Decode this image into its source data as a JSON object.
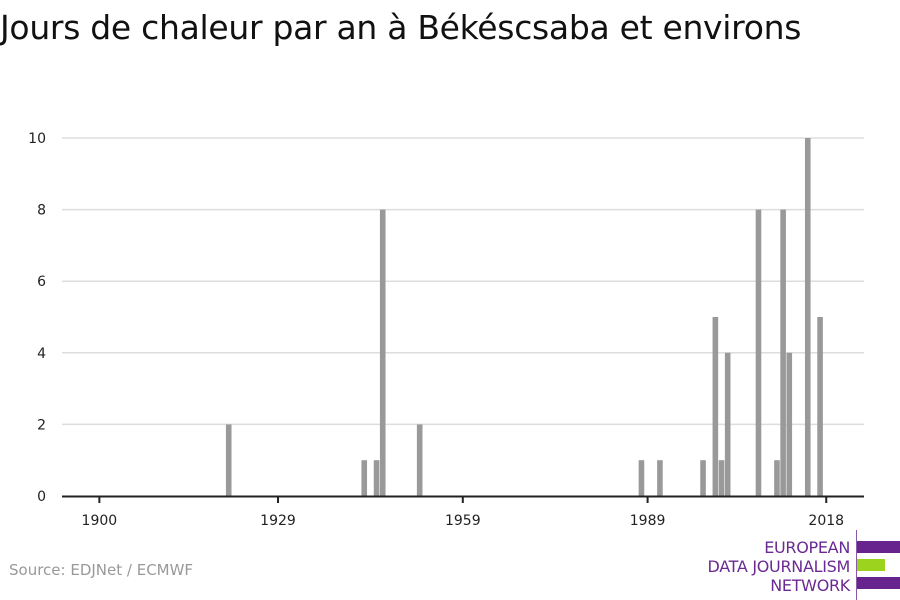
{
  "title": "Jours de chaleur par an à Békéscsaba et environs",
  "source": "Source: EDJNet / ECMWF",
  "logo": {
    "lines": [
      "EUROPEAN",
      "DATA JOURNALISM",
      "NETWORK"
    ],
    "colors": {
      "purple": "#68248e",
      "green": "#9bd31f"
    }
  },
  "chart_data": {
    "type": "bar",
    "title": "Jours de chaleur par an à Békéscsaba et environs",
    "xlabel": "",
    "ylabel": "",
    "x": [
      1921,
      1943,
      1945,
      1946,
      1952,
      1988,
      1991,
      1998,
      2000,
      2001,
      2002,
      2007,
      2010,
      2011,
      2012,
      2015,
      2017
    ],
    "values": [
      2,
      1,
      1,
      8,
      2,
      1,
      1,
      1,
      5,
      1,
      4,
      8,
      1,
      8,
      4,
      10,
      5
    ],
    "note_zero": "all other years 0",
    "xlim": [
      1894,
      2024
    ],
    "ylim": [
      0,
      10
    ],
    "x_ticks": [
      1900,
      1929,
      1959,
      1989,
      2018
    ],
    "y_ticks": [
      0,
      2,
      4,
      6,
      8,
      10
    ],
    "grid": "horizontal",
    "bar_color": "#999999"
  }
}
